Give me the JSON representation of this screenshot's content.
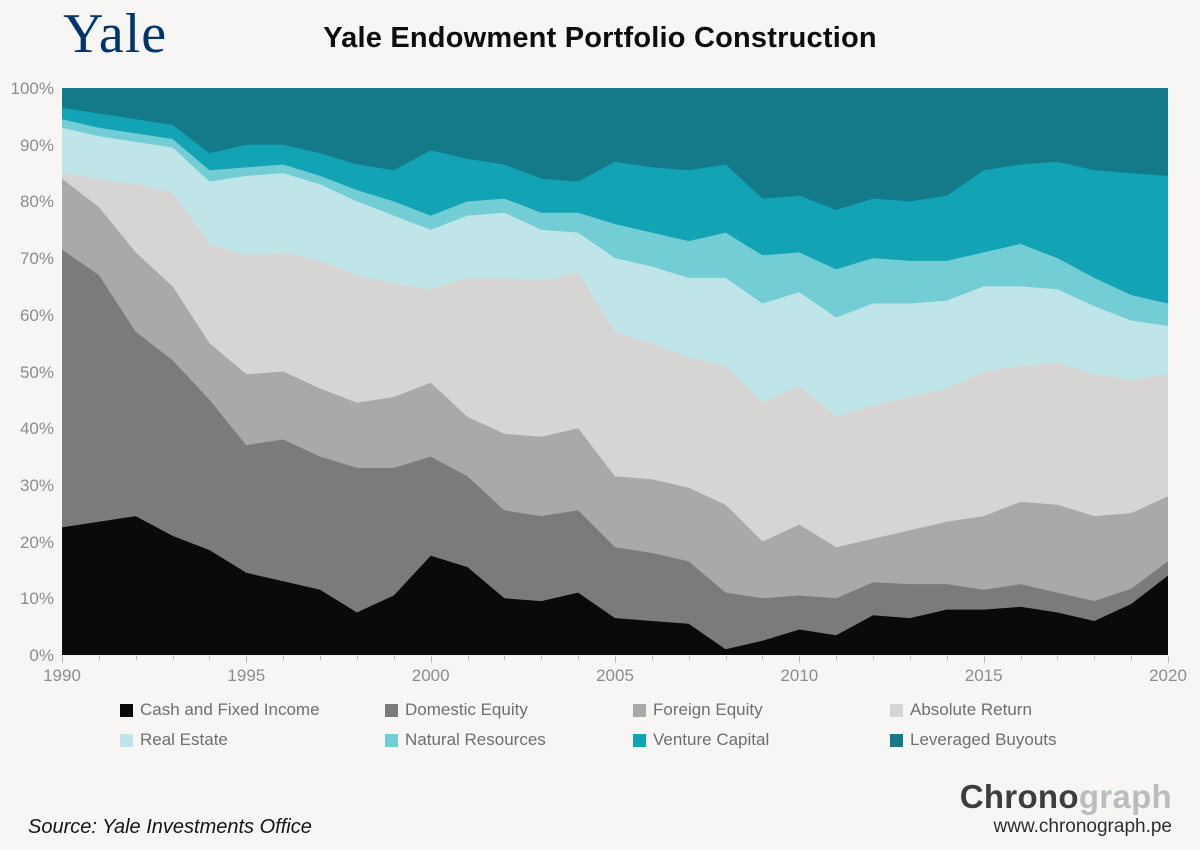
{
  "header": {
    "logo": "Yale",
    "title": "Yale Endowment Portfolio Construction"
  },
  "chart_data": {
    "type": "area",
    "stacked": true,
    "unit": "percent",
    "title": "Yale Endowment Portfolio Construction",
    "xlabel": "",
    "ylabel": "",
    "ylim": [
      0,
      100
    ],
    "grid": false,
    "legend_position": "bottom",
    "x": [
      1990,
      1991,
      1992,
      1993,
      1994,
      1995,
      1996,
      1997,
      1998,
      1999,
      2000,
      2001,
      2002,
      2003,
      2004,
      2005,
      2006,
      2007,
      2008,
      2009,
      2010,
      2011,
      2012,
      2013,
      2014,
      2015,
      2016,
      2017,
      2018,
      2019,
      2020
    ],
    "x_tick_labels": [
      "1990",
      "1995",
      "2000",
      "2005",
      "2010",
      "2015",
      "2020"
    ],
    "y_tick_labels": [
      "0%",
      "10%",
      "20%",
      "30%",
      "40%",
      "50%",
      "60%",
      "70%",
      "80%",
      "90%",
      "100%"
    ],
    "series": [
      {
        "name": "Cash and Fixed Income",
        "color": "#0a0a0a",
        "values": [
          22.5,
          23.5,
          24.5,
          21,
          18.5,
          14.5,
          13,
          11.5,
          7.5,
          10.5,
          17.5,
          15.5,
          10,
          9.5,
          11,
          6.5,
          6,
          5.5,
          1,
          2.5,
          4.5,
          3.5,
          7,
          6.5,
          8,
          8,
          8.5,
          7.5,
          6,
          9,
          14
        ]
      },
      {
        "name": "Domestic Equity",
        "color": "#7b7b7b",
        "values": [
          49,
          43.5,
          32.5,
          31,
          26.5,
          22.5,
          25,
          23.5,
          25.5,
          22.5,
          17.5,
          16,
          15.5,
          15,
          14.5,
          12.5,
          12,
          11,
          10,
          7.5,
          6,
          6.5,
          5.8,
          6,
          4.5,
          3.5,
          4,
          3.5,
          3.5,
          2.7,
          2.5
        ]
      },
      {
        "name": "Foreign Equity",
        "color": "#a9a9a9",
        "values": [
          12.5,
          12,
          14,
          13,
          10,
          12.5,
          12,
          12,
          11.5,
          12.5,
          13,
          10.5,
          13.5,
          14,
          14.5,
          12.5,
          13,
          13,
          15.5,
          10,
          12.5,
          9,
          7.7,
          9.5,
          11,
          13,
          14.5,
          15.5,
          15,
          13.3,
          11.5
        ]
      },
      {
        "name": "Absolute Return",
        "color": "#d7d5d4",
        "values": [
          1,
          5,
          12,
          16.5,
          17.5,
          21,
          21,
          22.5,
          22.5,
          20,
          16.5,
          24.5,
          27.5,
          27.5,
          27.5,
          25.5,
          24,
          23,
          24.5,
          24.5,
          24.5,
          23,
          23.5,
          23.5,
          23.5,
          25.5,
          24,
          25,
          25,
          23.5,
          21.5
        ]
      },
      {
        "name": "Real Estate",
        "color": "#c0e5e8",
        "values": [
          8,
          7.5,
          7.5,
          8,
          11,
          14,
          14,
          13.5,
          13,
          12,
          10.5,
          11,
          11.5,
          9,
          7,
          13,
          13.5,
          14,
          15.5,
          17.5,
          16.5,
          17.5,
          18,
          16.5,
          15.5,
          15,
          14,
          13,
          12,
          10.5,
          8.5
        ]
      },
      {
        "name": "Natural Resources",
        "color": "#72cdd4",
        "values": [
          1.5,
          1.5,
          1.5,
          1.5,
          2,
          1.5,
          1.5,
          1.5,
          2,
          2.5,
          2.5,
          2.5,
          2.5,
          3,
          3.5,
          6,
          6,
          6.5,
          8,
          8.5,
          7,
          8.5,
          8,
          7.5,
          7,
          6,
          7.5,
          5.5,
          5,
          4.5,
          4
        ]
      },
      {
        "name": "Venture Capital",
        "color": "#12a3b5",
        "values": [
          2,
          2.5,
          2.5,
          2.5,
          3,
          4,
          3.5,
          4,
          4.5,
          5.5,
          11.5,
          7.5,
          6,
          6,
          5.5,
          11,
          11.5,
          12.5,
          12,
          10,
          10,
          10.5,
          10.5,
          10.5,
          11.5,
          14.5,
          14,
          17,
          19,
          21.5,
          22.5
        ]
      },
      {
        "name": "Leveraged Buyouts",
        "color": "#147a8a",
        "values": [
          3.5,
          4.5,
          5.5,
          6.5,
          11.5,
          10,
          10,
          11.5,
          13.5,
          14.5,
          11,
          12.5,
          13.5,
          16,
          16.5,
          13,
          14,
          14.5,
          13.5,
          19.5,
          19,
          21.5,
          19.5,
          20,
          19,
          14.5,
          13.5,
          13,
          14.5,
          15,
          15.5
        ]
      }
    ]
  },
  "footer": {
    "source": "Source: Yale Investments Office",
    "brand_part1": "Chrono",
    "brand_part2": "graph",
    "url": "www.chronograph.pe"
  }
}
